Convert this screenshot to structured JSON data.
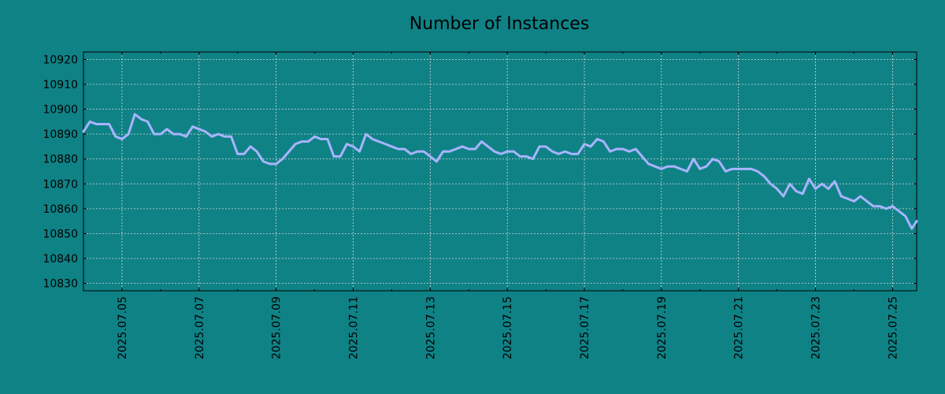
{
  "chart_data": {
    "type": "line",
    "title": "Number of Instances",
    "xlabel": "",
    "ylabel": "",
    "x_start": "2025-07-04",
    "x_end": "2025-07-25 15:00",
    "ylim": [
      10827,
      10923
    ],
    "y_ticks": [
      10830,
      10840,
      10850,
      10860,
      10870,
      10880,
      10890,
      10900,
      10910,
      10920
    ],
    "x_ticks": [
      "2025.07.05",
      "2025.07.07",
      "2025.07.09",
      "2025.07.11",
      "2025.07.13",
      "2025.07.15",
      "2025.07.17",
      "2025.07.19",
      "2025.07.21",
      "2025.07.23",
      "2025.07.25"
    ],
    "grid": true,
    "series": [
      {
        "x": [
          "2025-07-04 00:00",
          "2025-07-04 04:00",
          "2025-07-04 08:00",
          "2025-07-04 12:00",
          "2025-07-04 16:00",
          "2025-07-04 20:00",
          "2025-07-05 00:00",
          "2025-07-05 04:00",
          "2025-07-05 08:00",
          "2025-07-05 12:00",
          "2025-07-05 16:00",
          "2025-07-05 20:00",
          "2025-07-06 00:00",
          "2025-07-06 04:00",
          "2025-07-06 08:00",
          "2025-07-06 12:00",
          "2025-07-06 16:00",
          "2025-07-06 20:00",
          "2025-07-07 00:00",
          "2025-07-07 04:00",
          "2025-07-07 08:00",
          "2025-07-07 12:00",
          "2025-07-07 16:00",
          "2025-07-07 20:00",
          "2025-07-08 00:00",
          "2025-07-08 04:00",
          "2025-07-08 08:00",
          "2025-07-08 12:00",
          "2025-07-08 16:00",
          "2025-07-08 20:00",
          "2025-07-09 00:00",
          "2025-07-09 04:00",
          "2025-07-09 08:00",
          "2025-07-09 12:00",
          "2025-07-09 16:00",
          "2025-07-09 20:00",
          "2025-07-10 00:00",
          "2025-07-10 04:00",
          "2025-07-10 08:00",
          "2025-07-10 12:00",
          "2025-07-10 16:00",
          "2025-07-10 20:00",
          "2025-07-11 00:00",
          "2025-07-11 04:00",
          "2025-07-11 08:00",
          "2025-07-11 12:00",
          "2025-07-11 16:00",
          "2025-07-11 20:00",
          "2025-07-12 00:00",
          "2025-07-12 04:00",
          "2025-07-12 08:00",
          "2025-07-12 12:00",
          "2025-07-12 16:00",
          "2025-07-12 20:00",
          "2025-07-13 00:00",
          "2025-07-13 04:00",
          "2025-07-13 08:00",
          "2025-07-13 12:00",
          "2025-07-13 16:00",
          "2025-07-13 20:00",
          "2025-07-14 00:00",
          "2025-07-14 04:00",
          "2025-07-14 08:00",
          "2025-07-14 12:00",
          "2025-07-14 16:00",
          "2025-07-14 20:00",
          "2025-07-15 00:00",
          "2025-07-15 04:00",
          "2025-07-15 08:00",
          "2025-07-15 12:00",
          "2025-07-15 16:00",
          "2025-07-15 20:00",
          "2025-07-16 00:00",
          "2025-07-16 04:00",
          "2025-07-16 08:00",
          "2025-07-16 12:00",
          "2025-07-16 16:00",
          "2025-07-16 20:00",
          "2025-07-17 00:00",
          "2025-07-17 04:00",
          "2025-07-17 08:00",
          "2025-07-17 12:00",
          "2025-07-17 16:00",
          "2025-07-17 20:00",
          "2025-07-18 00:00",
          "2025-07-18 04:00",
          "2025-07-18 08:00",
          "2025-07-18 12:00",
          "2025-07-18 16:00",
          "2025-07-18 20:00",
          "2025-07-19 00:00",
          "2025-07-19 04:00",
          "2025-07-19 08:00",
          "2025-07-19 12:00",
          "2025-07-19 16:00",
          "2025-07-19 20:00",
          "2025-07-20 00:00",
          "2025-07-20 04:00",
          "2025-07-20 08:00",
          "2025-07-20 12:00",
          "2025-07-20 16:00",
          "2025-07-20 20:00",
          "2025-07-21 00:00",
          "2025-07-21 04:00",
          "2025-07-21 08:00",
          "2025-07-21 12:00",
          "2025-07-21 16:00",
          "2025-07-21 20:00",
          "2025-07-22 00:00",
          "2025-07-22 04:00",
          "2025-07-22 08:00",
          "2025-07-22 12:00",
          "2025-07-22 16:00",
          "2025-07-22 20:00",
          "2025-07-23 00:00",
          "2025-07-23 04:00",
          "2025-07-23 08:00",
          "2025-07-23 12:00",
          "2025-07-23 16:00",
          "2025-07-23 20:00",
          "2025-07-24 00:00",
          "2025-07-24 04:00",
          "2025-07-24 08:00",
          "2025-07-24 12:00",
          "2025-07-24 16:00",
          "2025-07-24 20:00",
          "2025-07-25 00:00",
          "2025-07-25 04:00",
          "2025-07-25 08:00",
          "2025-07-25 12:00",
          "2025-07-25 15:00"
        ],
        "values": [
          10891,
          10895,
          10894,
          10894,
          10894,
          10889,
          10888,
          10890,
          10898,
          10896,
          10895,
          10890,
          10890,
          10892,
          10890,
          10890,
          10889,
          10893,
          10892,
          10891,
          10889,
          10890,
          10889,
          10889,
          10882,
          10882,
          10885,
          10883,
          10879,
          10878,
          10878,
          10880,
          10883,
          10886,
          10887,
          10887,
          10889,
          10888,
          10888,
          10881,
          10881,
          10886,
          10885,
          10883,
          10890,
          10888,
          10887,
          10886,
          10885,
          10884,
          10884,
          10882,
          10883,
          10883,
          10881,
          10879,
          10883,
          10883,
          10884,
          10885,
          10884,
          10884,
          10887,
          10885,
          10883,
          10882,
          10883,
          10883,
          10881,
          10881,
          10880,
          10885,
          10885,
          10883,
          10882,
          10883,
          10882,
          10882,
          10886,
          10885,
          10888,
          10887,
          10883,
          10884,
          10884,
          10883,
          10884,
          10881,
          10878,
          10877,
          10876,
          10877,
          10877,
          10876,
          10875,
          10880,
          10876,
          10877,
          10880,
          10879,
          10875,
          10876,
          10876,
          10876,
          10876,
          10875,
          10873,
          10870,
          10868,
          10865,
          10870,
          10867,
          10866,
          10872,
          10868,
          10870,
          10868,
          10871,
          10865,
          10864,
          10863,
          10865,
          10863,
          10861,
          10861,
          10860,
          10861,
          10859,
          10857,
          10852,
          10855
        ]
      }
    ]
  },
  "colors": {
    "background": "#0f8286",
    "line": "#a8b4ff",
    "grid": "#d8d8d8",
    "text": "#000000"
  }
}
